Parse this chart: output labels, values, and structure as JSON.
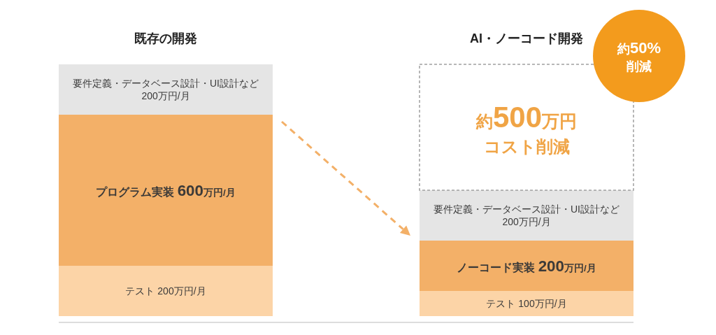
{
  "chart_data": {
    "type": "bar",
    "stacked": true,
    "categories": [
      "既存の開発",
      "AI・ノーコード開発"
    ],
    "ylim": [
      0,
      1000
    ],
    "tick_labels": "x",
    "series": [
      {
        "color": "#fcd4a7",
        "values": [
          200,
          100
        ],
        "value_labels": [
          "テスト 200万円/月",
          "テスト 100万円/月"
        ]
      },
      {
        "color": "#f3b068",
        "values": [
          600,
          200
        ],
        "value_labels": [
          "プログラム実装 600万円/月",
          "ノーコード実装 200万円/月"
        ]
      },
      {
        "color": "#e5e5e5",
        "values": [
          200,
          200
        ],
        "value_labels": [
          "要件定義・データベース設計・UI設計など\n200万円/月",
          "要件定義・データベース設計・UI設計など\n200万円/月"
        ]
      },
      {
        "color": "#ffffff",
        "line_style": "dashed",
        "values": [
          null,
          500
        ],
        "value_labels": [
          null,
          "約500万円コスト削減"
        ]
      }
    ],
    "annotations": [
      "約50%\n削減"
    ]
  }
}
